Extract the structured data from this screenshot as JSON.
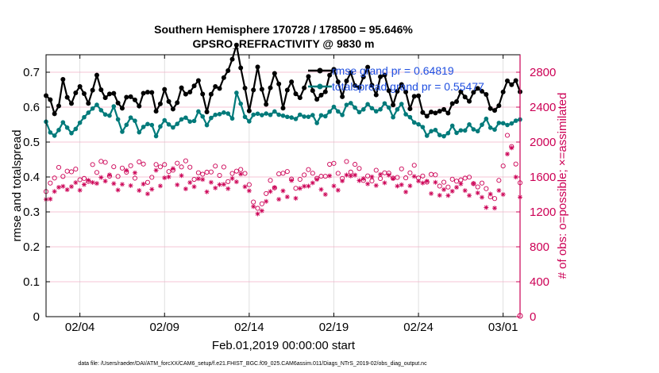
{
  "chart_data": {
    "type": "line",
    "title_line1": "Southern Hemisphere 170728 / 178500 = 95.646%",
    "title_line2": "GPSRO_REFRACTIVITY @ 9830 m",
    "xlabel": "Feb.01,2019 00:00:00 start",
    "ylabel_left": "rmse and totalspread",
    "ylabel_right": "# of obs: o=possible; ×=assimilated",
    "footer": "data file: /Users/raeder/DAI/ATM_forcXX/CAM6_setup/f.e21.FHIST_BGC.f09_025.CAM6assim.011/Diags_NTrS_2019-02/obs_diag_output.nc",
    "xlim": [
      1,
      29
    ],
    "ylim_left": [
      0,
      0.75
    ],
    "ylim_right": [
      0,
      3000
    ],
    "x_ticks": [
      3,
      8,
      13,
      18,
      23,
      28
    ],
    "x_tick_labels": [
      "02/04",
      "02/09",
      "02/14",
      "02/19",
      "02/24",
      "03/01"
    ],
    "y_ticks_left": [
      0,
      0.1,
      0.2,
      0.3,
      0.4,
      0.5,
      0.6,
      0.7
    ],
    "y_tick_labels_left": [
      "0",
      "0.1",
      "0.2",
      "0.3",
      "0.4",
      "0.5",
      "0.6",
      "0.7"
    ],
    "y_ticks_right": [
      0,
      400,
      800,
      1200,
      1600,
      2000,
      2400,
      2800
    ],
    "y_tick_labels_right": [
      "0",
      "400",
      "800",
      "1200",
      "1600",
      "2000",
      "2400",
      "2800"
    ],
    "colors": {
      "rmse": "#000000",
      "spread": "#007a7a",
      "obs": "#cc0055",
      "legend_text": "#1f4fe0"
    },
    "legend": [
      {
        "label": "rmse grand pr = 0.64819",
        "key": "rmse"
      },
      {
        "label": "totalspread grand pr = 0.55477",
        "key": "spread"
      }
    ],
    "rmse_anchors": [
      [
        1.0,
        0.65
      ],
      [
        1.3,
        0.63
      ],
      [
        1.6,
        0.55
      ],
      [
        2.0,
        0.67
      ],
      [
        2.5,
        0.6
      ],
      [
        3.0,
        0.66
      ],
      [
        3.5,
        0.62
      ],
      [
        4.0,
        0.69
      ],
      [
        4.5,
        0.61
      ],
      [
        5.0,
        0.65
      ],
      [
        5.5,
        0.59
      ],
      [
        6.0,
        0.64
      ],
      [
        6.5,
        0.62
      ],
      [
        7.0,
        0.66
      ],
      [
        7.5,
        0.59
      ],
      [
        8.0,
        0.64
      ],
      [
        8.5,
        0.6
      ],
      [
        9.0,
        0.65
      ],
      [
        9.5,
        0.63
      ],
      [
        10.0,
        0.67
      ],
      [
        10.5,
        0.6
      ],
      [
        11.0,
        0.66
      ],
      [
        11.5,
        0.68
      ],
      [
        12.0,
        0.73
      ],
      [
        12.3,
        0.79
      ],
      [
        12.6,
        0.66
      ],
      [
        13.0,
        0.6
      ],
      [
        13.5,
        0.7
      ],
      [
        14.0,
        0.62
      ],
      [
        14.5,
        0.71
      ],
      [
        15.0,
        0.6
      ],
      [
        15.5,
        0.68
      ],
      [
        16.0,
        0.62
      ],
      [
        16.5,
        0.7
      ],
      [
        17.0,
        0.61
      ],
      [
        17.5,
        0.66
      ],
      [
        18.0,
        0.72
      ],
      [
        18.5,
        0.62
      ],
      [
        19.0,
        0.7
      ],
      [
        19.5,
        0.65
      ],
      [
        20.0,
        0.71
      ],
      [
        20.5,
        0.64
      ],
      [
        21.0,
        0.7
      ],
      [
        21.5,
        0.62
      ],
      [
        22.0,
        0.65
      ],
      [
        22.5,
        0.61
      ],
      [
        23.0,
        0.63
      ],
      [
        23.5,
        0.57
      ],
      [
        24.0,
        0.6
      ],
      [
        24.5,
        0.58
      ],
      [
        25.0,
        0.61
      ],
      [
        25.5,
        0.64
      ],
      [
        26.0,
        0.6
      ],
      [
        26.5,
        0.66
      ],
      [
        27.0,
        0.62
      ],
      [
        27.5,
        0.59
      ],
      [
        28.0,
        0.64
      ],
      [
        28.3,
        0.68
      ],
      [
        29.0,
        0.66
      ]
    ],
    "spread_anchors": [
      [
        1.0,
        0.56
      ],
      [
        1.3,
        0.52
      ],
      [
        1.6,
        0.51
      ],
      [
        2.0,
        0.55
      ],
      [
        2.5,
        0.53
      ],
      [
        3.0,
        0.56
      ],
      [
        3.5,
        0.58
      ],
      [
        4.0,
        0.61
      ],
      [
        4.5,
        0.57
      ],
      [
        5.0,
        0.6
      ],
      [
        5.5,
        0.53
      ],
      [
        6.0,
        0.58
      ],
      [
        6.5,
        0.53
      ],
      [
        7.0,
        0.56
      ],
      [
        7.5,
        0.52
      ],
      [
        8.0,
        0.57
      ],
      [
        8.5,
        0.54
      ],
      [
        9.0,
        0.57
      ],
      [
        9.5,
        0.56
      ],
      [
        10.0,
        0.58
      ],
      [
        10.5,
        0.55
      ],
      [
        11.0,
        0.57
      ],
      [
        11.5,
        0.58
      ],
      [
        12.0,
        0.57
      ],
      [
        12.3,
        0.65
      ],
      [
        12.6,
        0.58
      ],
      [
        13.0,
        0.55
      ],
      [
        13.5,
        0.59
      ],
      [
        14.0,
        0.58
      ],
      [
        14.5,
        0.58
      ],
      [
        15.0,
        0.57
      ],
      [
        15.5,
        0.58
      ],
      [
        16.0,
        0.57
      ],
      [
        16.5,
        0.58
      ],
      [
        17.0,
        0.56
      ],
      [
        17.5,
        0.58
      ],
      [
        18.0,
        0.61
      ],
      [
        18.5,
        0.58
      ],
      [
        19.0,
        0.62
      ],
      [
        19.5,
        0.59
      ],
      [
        20.0,
        0.61
      ],
      [
        20.5,
        0.59
      ],
      [
        21.0,
        0.61
      ],
      [
        21.5,
        0.58
      ],
      [
        22.0,
        0.6
      ],
      [
        22.5,
        0.57
      ],
      [
        23.0,
        0.55
      ],
      [
        23.5,
        0.52
      ],
      [
        24.0,
        0.54
      ],
      [
        24.5,
        0.52
      ],
      [
        25.0,
        0.54
      ],
      [
        25.5,
        0.53
      ],
      [
        26.0,
        0.55
      ],
      [
        26.5,
        0.54
      ],
      [
        27.0,
        0.56
      ],
      [
        27.5,
        0.53
      ],
      [
        28.0,
        0.56
      ],
      [
        28.3,
        0.55
      ],
      [
        29.0,
        0.56
      ]
    ],
    "possible_anchors": [
      [
        1.0,
        1520
      ],
      [
        2.0,
        1680
      ],
      [
        3.0,
        1560
      ],
      [
        4.0,
        1740
      ],
      [
        5.0,
        1640
      ],
      [
        6.0,
        1720
      ],
      [
        7.0,
        1620
      ],
      [
        8.0,
        1760
      ],
      [
        9.0,
        1690
      ],
      [
        10.0,
        1650
      ],
      [
        11.0,
        1630
      ],
      [
        12.0,
        1610
      ],
      [
        12.5,
        1700
      ],
      [
        13.0,
        1480
      ],
      [
        13.5,
        1340
      ],
      [
        14.0,
        1440
      ],
      [
        15.0,
        1600
      ],
      [
        16.0,
        1560
      ],
      [
        17.0,
        1610
      ],
      [
        18.0,
        1650
      ],
      [
        19.0,
        1700
      ],
      [
        20.0,
        1640
      ],
      [
        21.0,
        1660
      ],
      [
        22.0,
        1600
      ],
      [
        23.0,
        1640
      ],
      [
        24.0,
        1580
      ],
      [
        25.0,
        1520
      ],
      [
        26.0,
        1560
      ],
      [
        27.0,
        1460
      ],
      [
        27.5,
        1400
      ],
      [
        28.0,
        1620
      ],
      [
        28.3,
        2100
      ],
      [
        28.6,
        1900
      ],
      [
        29.0,
        1520
      ]
    ],
    "assimilated_anchors": [
      [
        1.0,
        1420
      ],
      [
        2.0,
        1560
      ],
      [
        3.0,
        1440
      ],
      [
        4.0,
        1600
      ],
      [
        5.0,
        1520
      ],
      [
        6.0,
        1600
      ],
      [
        7.0,
        1510
      ],
      [
        8.0,
        1640
      ],
      [
        9.0,
        1570
      ],
      [
        10.0,
        1530
      ],
      [
        11.0,
        1510
      ],
      [
        12.0,
        1490
      ],
      [
        12.5,
        1580
      ],
      [
        13.0,
        1360
      ],
      [
        13.5,
        1100
      ],
      [
        14.0,
        1320
      ],
      [
        15.0,
        1480
      ],
      [
        16.0,
        1440
      ],
      [
        17.0,
        1490
      ],
      [
        18.0,
        1530
      ],
      [
        19.0,
        1580
      ],
      [
        20.0,
        1520
      ],
      [
        21.0,
        1540
      ],
      [
        22.0,
        1480
      ],
      [
        23.0,
        1520
      ],
      [
        24.0,
        1460
      ],
      [
        25.0,
        1400
      ],
      [
        26.0,
        1440
      ],
      [
        27.0,
        1340
      ],
      [
        27.5,
        1300
      ],
      [
        28.0,
        1500
      ],
      [
        28.3,
        2000
      ],
      [
        28.6,
        1800
      ],
      [
        29.0,
        1400
      ]
    ]
  }
}
